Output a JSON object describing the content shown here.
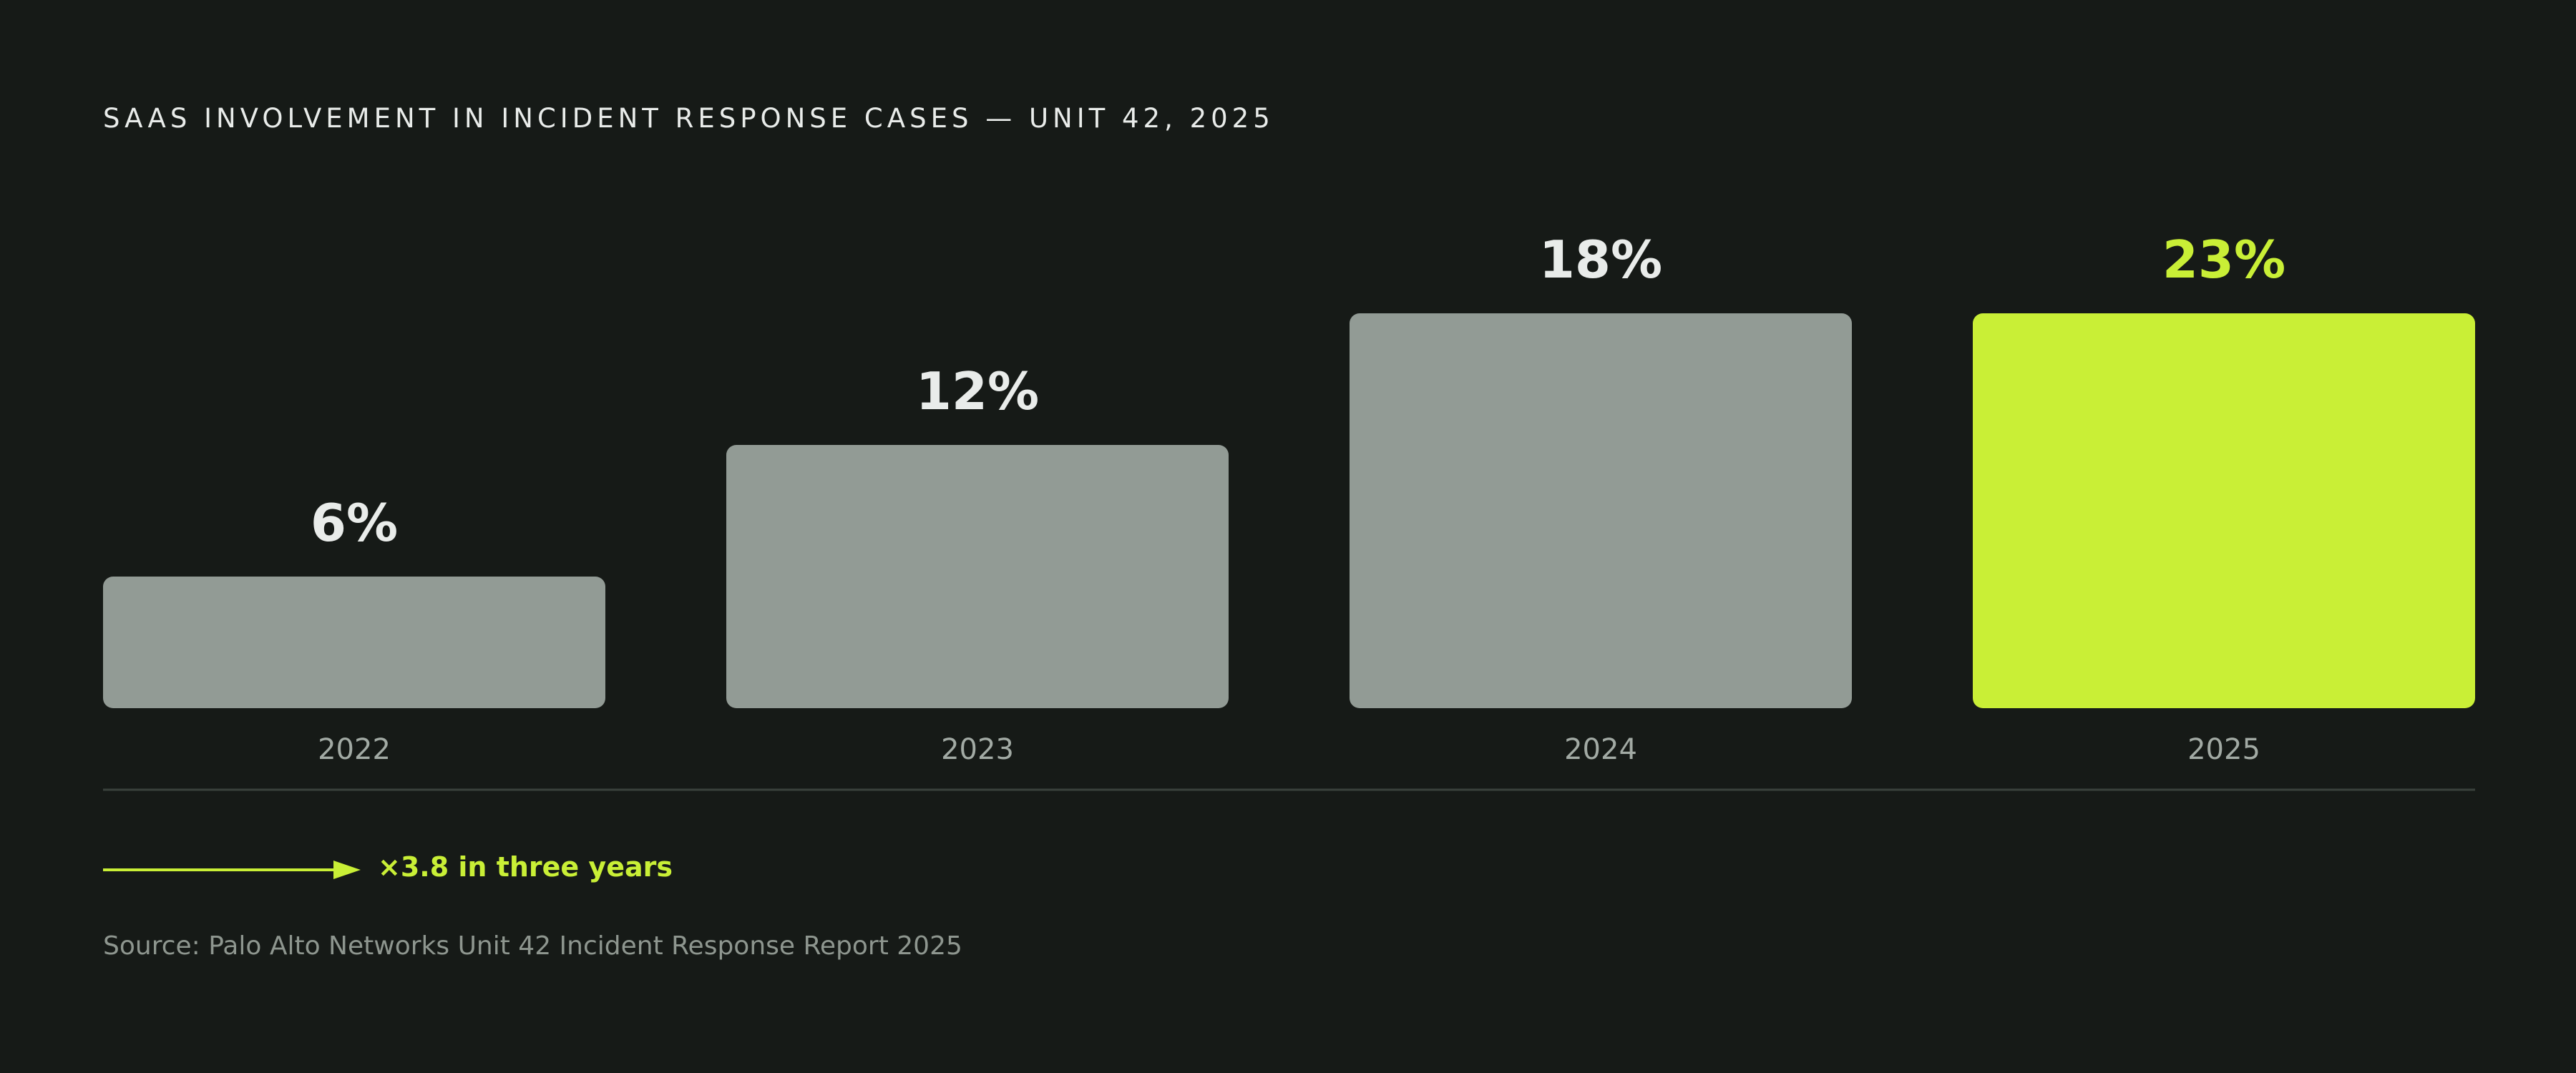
{
  "colors": {
    "background": "#161a17",
    "bar": "#929b95",
    "highlight": "#c9ef36",
    "value_label": "#e9ecea",
    "category_label": "#a2aaa4",
    "axis_line": "#3a413c"
  },
  "chart_data": {
    "type": "bar",
    "title": "SAAS INVOLVEMENT IN INCIDENT RESPONSE CASES — UNIT 42, 2025",
    "categories": [
      "2022",
      "2023",
      "2024",
      "2025"
    ],
    "values": [
      6,
      12,
      18,
      23
    ],
    "value_labels": [
      "6%",
      "12%",
      "18%",
      "23%"
    ],
    "highlight_index": 3,
    "ylim": [
      0,
      18
    ],
    "xlabel": "",
    "ylabel": "",
    "grid": false
  },
  "footer": {
    "callout": "×3.8 in three years",
    "source": "Source: Palo Alto Networks Unit 42 Incident Response Report 2025"
  }
}
